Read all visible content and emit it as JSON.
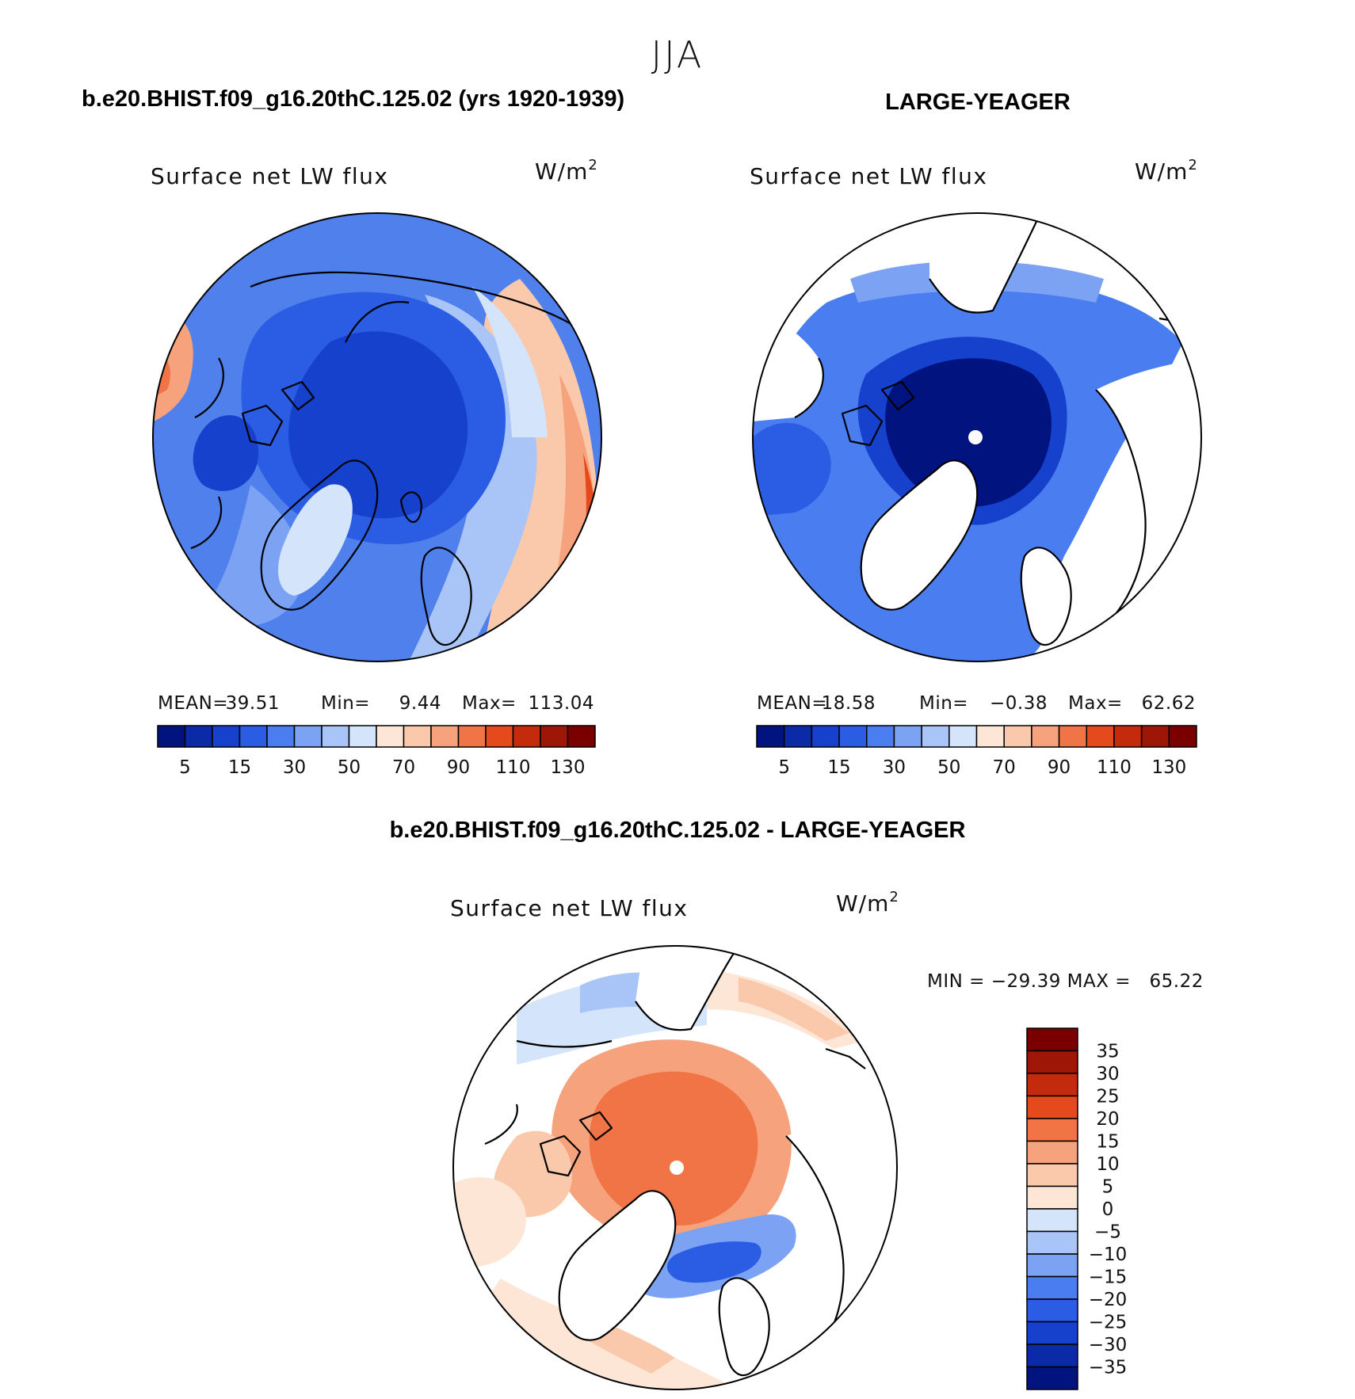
{
  "figure": {
    "season": "JJA",
    "left_panel_title": "b.e20.BHIST.f09_g16.20thC.125.02 (yrs 1920-1939)",
    "right_panel_title": "LARGE-YEAGER",
    "diff_panel_title": "b.e20.BHIST.f09_g16.20thC.125.02 - LARGE-YEAGER"
  },
  "panels": {
    "left": {
      "variable": "Surface net LW flux",
      "units_base": "W/m",
      "units_exp": "2",
      "stats": {
        "mean_label": "MEAN=",
        "mean": "39.51",
        "min_label": "Min=",
        "min": "9.44",
        "max_label": "Max=",
        "max": "113.04"
      }
    },
    "right": {
      "variable": "Surface net LW flux",
      "units_base": "W/m",
      "units_exp": "2",
      "stats": {
        "mean_label": "MEAN=",
        "mean": "18.58",
        "min_label": "Min=",
        "min": "−0.38",
        "max_label": "Max=",
        "max": "62.62"
      }
    },
    "diff": {
      "variable": "Surface net LW flux",
      "units_base": "W/m",
      "units_exp": "2",
      "minmax_text": "MIN = −29.39 MAX =   65.22"
    }
  },
  "colorbars": {
    "abs": {
      "colors": [
        "#00137e",
        "#0a2aa8",
        "#1641cc",
        "#2a5de4",
        "#4a7ef0",
        "#7ca2f4",
        "#a9c4f7",
        "#d4e5fb",
        "#fde6d6",
        "#fac9ab",
        "#f6a27c",
        "#f07445",
        "#e44a1c",
        "#c42a0c",
        "#9e1606",
        "#7a0000"
      ],
      "tick_labels": [
        "5",
        "15",
        "30",
        "50",
        "70",
        "90",
        "110",
        "130"
      ]
    },
    "diff": {
      "colors": [
        "#00137e",
        "#0a2aa8",
        "#1641cc",
        "#2a5de4",
        "#4a7ef0",
        "#7ca2f4",
        "#a9c4f7",
        "#d4e5fb",
        "#fde6d6",
        "#fac9ab",
        "#f6a27c",
        "#f07445",
        "#e44a1c",
        "#c42a0c",
        "#9e1606",
        "#7a0000"
      ],
      "tick_labels": [
        "35",
        "30",
        "25",
        "20",
        "15",
        "10",
        "5",
        "0",
        "−5",
        "−10",
        "−15",
        "−20",
        "−25",
        "−30",
        "−35"
      ]
    }
  },
  "map_palette": {
    "land": "#ffffff",
    "pole_marker": "#ffffff",
    "coastline": "#000000"
  }
}
